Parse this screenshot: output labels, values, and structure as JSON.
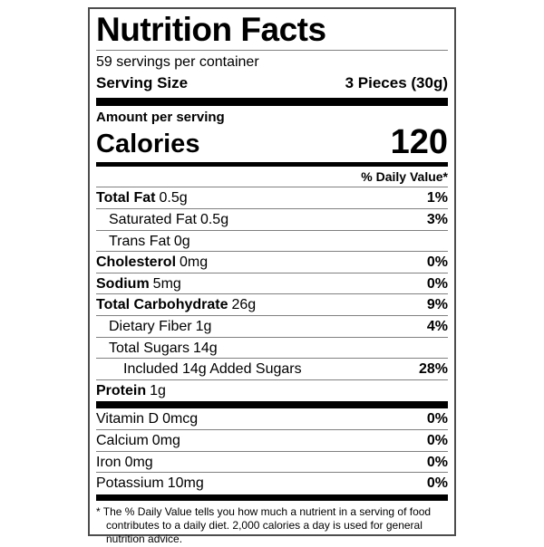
{
  "label": {
    "title": "Nutrition Facts",
    "servings_per_container": "59 servings per container",
    "serving_size_label": "Serving Size",
    "serving_size_value": "3 Pieces (30g)",
    "amount_per_serving": "Amount per serving",
    "calories_label": "Calories",
    "calories_value": "120",
    "daily_value_header": "% Daily Value*",
    "nutrients": [
      {
        "name": "Total Fat",
        "amount": "0.5g",
        "dv": "1%"
      },
      {
        "name": "Saturated Fat",
        "amount": "0.5g",
        "dv": "3%"
      },
      {
        "name": "Trans Fat",
        "amount": "0g",
        "dv": ""
      },
      {
        "name": "Cholesterol",
        "amount": "0mg",
        "dv": "0%"
      },
      {
        "name": "Sodium",
        "amount": "5mg",
        "dv": "0%"
      },
      {
        "name": "Total Carbohydrate",
        "amount": "26g",
        "dv": "9%"
      },
      {
        "name": "Dietary Fiber",
        "amount": "1g",
        "dv": "4%"
      },
      {
        "name": "Total Sugars",
        "amount": "14g",
        "dv": ""
      },
      {
        "name": "Included 14g Added Sugars",
        "amount": "",
        "dv": "28%"
      },
      {
        "name": "Protein",
        "amount": "1g",
        "dv": ""
      }
    ],
    "vitamins": [
      {
        "name": "Vitamin D",
        "amount": "0mcg",
        "dv": "0%"
      },
      {
        "name": "Calcium",
        "amount": "0mg",
        "dv": "0%"
      },
      {
        "name": "Iron",
        "amount": "0mg",
        "dv": "0%"
      },
      {
        "name": "Potassium",
        "amount": "10mg",
        "dv": "0%"
      }
    ],
    "footnote": "* The % Daily Value tells you how much a nutrient in a serving of food contributes to a daily diet. 2,000 calories a day is used for general nutrition advice."
  },
  "colors": {
    "text": "#000000",
    "thick_bar": "#000000",
    "hairline": "#808080",
    "border": "#4d4d4d",
    "background": "#ffffff"
  }
}
